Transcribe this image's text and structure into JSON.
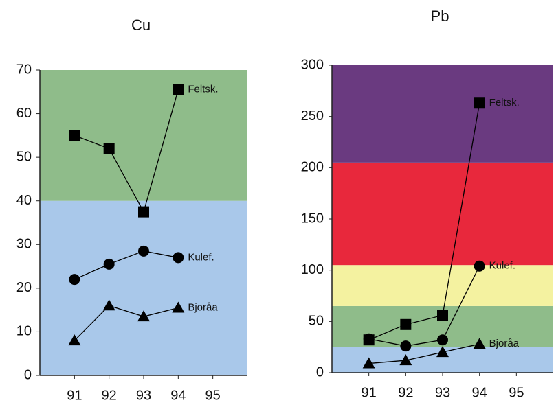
{
  "chart_data": [
    {
      "type": "line",
      "title": "Cu",
      "x": [
        91,
        92,
        93,
        94
      ],
      "xlim": [
        90,
        96
      ],
      "xticks": [
        91,
        92,
        93,
        94,
        95
      ],
      "ylim": [
        0,
        70
      ],
      "yticks": [
        0,
        10,
        20,
        30,
        40,
        50,
        60,
        70
      ],
      "bands": [
        {
          "from": 0,
          "to": 40,
          "color": "#a9c8ea"
        },
        {
          "from": 40,
          "to": 70,
          "color": "#8fbc8a"
        }
      ],
      "series": [
        {
          "name": "Feltsk.",
          "color": "#000000",
          "marker": "square",
          "values": [
            55,
            52,
            37.5,
            65.5
          ]
        },
        {
          "name": "Kulef.",
          "color": "#000000",
          "marker": "circle",
          "values": [
            22,
            25.5,
            28.5,
            27
          ]
        },
        {
          "name": "Bjoråa",
          "color": "#000000",
          "marker": "triangle",
          "values": [
            8,
            16,
            13.5,
            15.5
          ]
        }
      ]
    },
    {
      "type": "line",
      "title": "Pb",
      "x": [
        91,
        92,
        93,
        94
      ],
      "xlim": [
        90,
        96
      ],
      "xticks": [
        91,
        92,
        93,
        94,
        95
      ],
      "ylim": [
        0,
        300
      ],
      "yticks": [
        0,
        50,
        100,
        150,
        200,
        250,
        300
      ],
      "bands": [
        {
          "from": 0,
          "to": 25,
          "color": "#a9c8ea"
        },
        {
          "from": 25,
          "to": 65,
          "color": "#8fbc8a"
        },
        {
          "from": 65,
          "to": 105,
          "color": "#f4f2a0"
        },
        {
          "from": 105,
          "to": 205,
          "color": "#e8283c"
        },
        {
          "from": 205,
          "to": 300,
          "color": "#6a3a80"
        }
      ],
      "series": [
        {
          "name": "Feltsk.",
          "color": "#000000",
          "marker": "square",
          "values": [
            32,
            47,
            56,
            263
          ]
        },
        {
          "name": "Kulef.",
          "color": "#000000",
          "marker": "circle",
          "values": [
            33,
            26,
            32,
            104
          ]
        },
        {
          "name": "Bjoråa",
          "color": "#000000",
          "marker": "triangle",
          "values": [
            9,
            12,
            20,
            28
          ]
        }
      ]
    }
  ]
}
